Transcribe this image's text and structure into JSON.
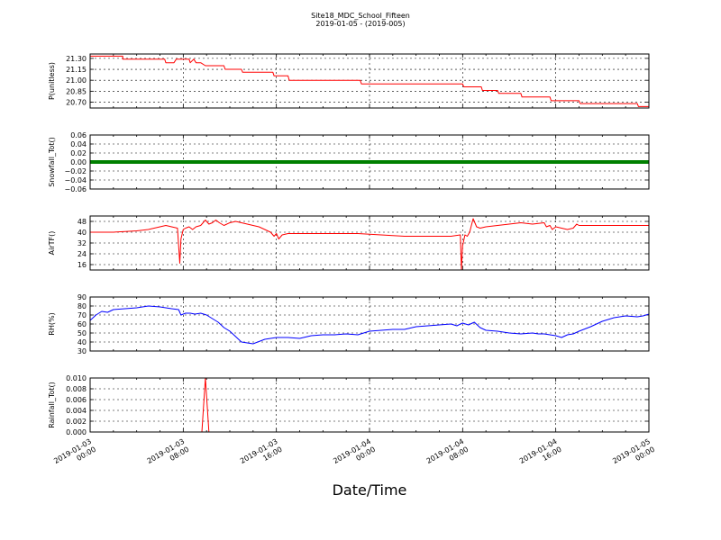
{
  "figure": {
    "title": "Site18_MDC_School_Fifteen",
    "subtitle": "2019-01-05 - (2019-005)",
    "xlabel": "Date/Time",
    "x_ticks": [
      {
        "line1": "2019-01-03",
        "line2": "00:00"
      },
      {
        "line1": "2019-01-03",
        "line2": "08:00"
      },
      {
        "line1": "2019-01-03",
        "line2": "16:00"
      },
      {
        "line1": "2019-01-04",
        "line2": "00:00"
      },
      {
        "line1": "2019-01-04",
        "line2": "08:00"
      },
      {
        "line1": "2019-01-04",
        "line2": "16:00"
      },
      {
        "line1": "2019-01-05",
        "line2": "00:00"
      }
    ]
  },
  "chart_data": [
    {
      "type": "line",
      "ylabel": "P(unitless)",
      "color": "#ff0000",
      "ylim": [
        20.62,
        21.36
      ],
      "yticks": [
        "20.70",
        "20.85",
        "21.00",
        "21.15",
        "21.30"
      ],
      "x_hours": [
        0,
        2.8,
        2.8,
        6.4,
        6.5,
        7.2,
        7.4,
        8.5,
        8.6,
        8.9,
        9.1,
        9.5,
        9.9,
        10.0,
        11.5,
        11.6,
        13.0,
        13.1,
        15.7,
        15.8,
        17.0,
        17.1,
        23.2,
        23.3,
        32.0,
        32.1,
        33.6,
        33.7,
        35.0,
        35.1,
        37.0,
        37.1,
        39.5,
        39.6,
        42.0,
        42.1,
        47.0,
        47.1,
        47.5,
        48.0
      ],
      "y": [
        21.33,
        21.33,
        21.29,
        21.29,
        21.24,
        21.24,
        21.29,
        21.29,
        21.24,
        21.29,
        21.24,
        21.24,
        21.2,
        21.2,
        21.2,
        21.15,
        21.15,
        21.11,
        21.11,
        21.06,
        21.06,
        21.0,
        21.0,
        20.95,
        20.95,
        20.91,
        20.91,
        20.86,
        20.86,
        20.82,
        20.82,
        20.77,
        20.77,
        20.72,
        20.72,
        20.68,
        20.68,
        20.64,
        20.64,
        20.64
      ]
    },
    {
      "type": "line",
      "ylabel": "Snowfall_Tot()",
      "color": "#008000",
      "ylim": [
        -0.06,
        0.06
      ],
      "yticks": [
        "−0.06",
        "−0.04",
        "−0.02",
        "0.00",
        "0.02",
        "0.04",
        "0.06"
      ],
      "x_hours": [
        0,
        48
      ],
      "y": [
        0,
        0
      ]
    },
    {
      "type": "line",
      "ylabel": "AirTF()",
      "color": "#ff0000",
      "ylim": [
        12,
        52
      ],
      "yticks": [
        "16",
        "24",
        "32",
        "40",
        "48"
      ],
      "x_hours": [
        0,
        1,
        2,
        3,
        4,
        5,
        6,
        6.5,
        7,
        7.5,
        7.7,
        7.8,
        8.0,
        8.2,
        8.5,
        8.8,
        9.1,
        9.5,
        9.9,
        10.2,
        10.5,
        10.8,
        11.1,
        11.5,
        12,
        12.5,
        13,
        13.5,
        14,
        14.5,
        15,
        15.5,
        15.8,
        16.0,
        16.2,
        16.5,
        17,
        18,
        19,
        20,
        21,
        22,
        23,
        24,
        25,
        26,
        27,
        28,
        29,
        30,
        31,
        31.8,
        31.9,
        32.0,
        32.2,
        32.4,
        32.6,
        32.9,
        33.2,
        33.5,
        34,
        35,
        36,
        37,
        38,
        39,
        39.2,
        39.5,
        39.7,
        40,
        40.5,
        41,
        41.5,
        41.8,
        42,
        43,
        44,
        45,
        46,
        47,
        48
      ],
      "y": [
        40,
        40,
        40,
        40.5,
        41,
        42,
        44,
        45,
        44,
        43,
        17,
        35,
        42,
        43,
        44,
        42,
        44,
        45,
        49,
        46,
        47,
        49,
        47,
        45,
        47,
        48,
        47,
        46,
        45,
        44,
        42,
        40,
        37,
        39,
        35,
        38,
        39,
        39,
        39,
        39,
        39,
        39,
        39,
        38.5,
        38,
        37.5,
        37,
        37,
        37,
        37,
        37,
        38,
        12,
        30,
        38,
        37,
        40,
        50,
        44,
        43,
        44,
        45,
        46,
        47,
        46,
        47,
        44,
        45,
        42,
        44,
        43,
        42,
        43,
        46,
        45,
        45,
        45,
        45,
        45,
        45,
        45
      ]
    },
    {
      "type": "line",
      "ylabel": "RH(%)",
      "color": "#0000ff",
      "ylim": [
        30,
        90
      ],
      "yticks": [
        "30",
        "40",
        "50",
        "60",
        "70",
        "80",
        "90"
      ],
      "x_hours": [
        0,
        0.5,
        1,
        1.5,
        2,
        3,
        4,
        5,
        6,
        7,
        7.6,
        7.8,
        8.2,
        8.6,
        9,
        9.5,
        10,
        10.5,
        11,
        11.5,
        12,
        12.5,
        13,
        13.5,
        14,
        15,
        16,
        17,
        18,
        19,
        20,
        21,
        22,
        23,
        24,
        25,
        26,
        27,
        28,
        29,
        30,
        31,
        31.5,
        32,
        32.5,
        33,
        33.5,
        34,
        35,
        36,
        37,
        38,
        38.5,
        39,
        39.5,
        40,
        40.5,
        41,
        41.5,
        42,
        43,
        44,
        45,
        46,
        47,
        47.5,
        48
      ],
      "y": [
        64,
        70,
        74,
        73,
        76,
        77,
        78,
        80,
        79,
        77,
        76,
        70,
        72,
        72,
        71,
        72,
        70,
        66,
        62,
        56,
        52,
        46,
        40,
        39,
        38,
        43,
        45,
        45,
        44,
        47,
        48,
        48,
        49,
        48,
        52,
        53,
        54,
        54,
        57,
        58,
        59,
        60,
        58,
        61,
        59,
        62,
        56,
        53,
        52,
        50,
        49,
        50,
        49,
        49,
        48,
        47,
        45,
        48,
        49,
        52,
        57,
        63,
        67,
        69,
        68,
        69,
        71
      ]
    },
    {
      "type": "line",
      "ylabel": "Rainfall_Tot()",
      "color": "#ff0000",
      "ylim": [
        0,
        0.01
      ],
      "yticks": [
        "0.000",
        "0.002",
        "0.004",
        "0.006",
        "0.008",
        "0.010"
      ],
      "x_hours": [
        0,
        9.6,
        9.9,
        10.2,
        48
      ],
      "y": [
        0,
        0,
        0.01,
        0,
        0
      ]
    }
  ]
}
